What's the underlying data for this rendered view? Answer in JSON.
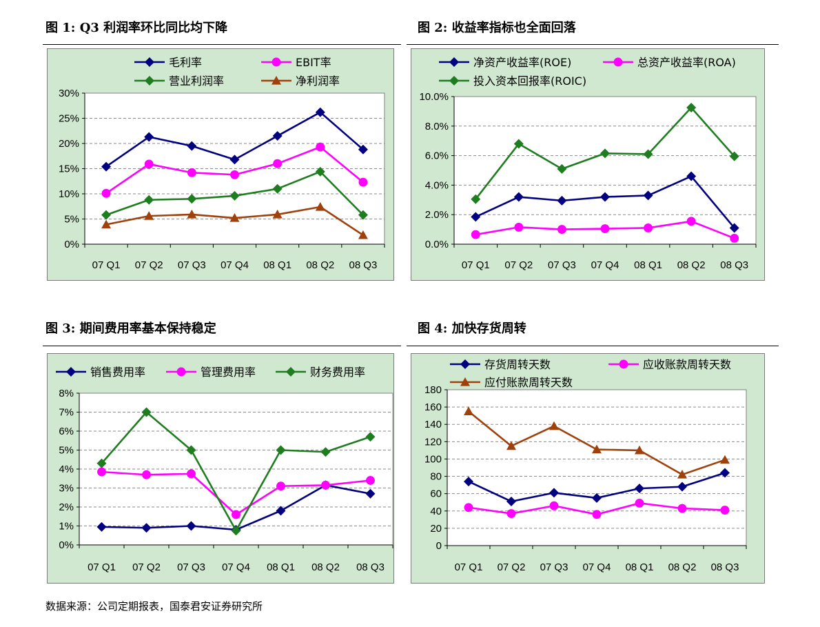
{
  "figure_titles": [
    "图 1:  Q3 利润率环比同比均下降",
    "图 2:  收益率指标也全面回落",
    "图 3:  期间费用率基本保持稳定",
    "图 4:  加快存货周转"
  ],
  "source": "数据来源：公司定期报表，国泰君安证券研究所",
  "chart_data": [
    {
      "type": "line",
      "title": "图 1:  Q3 利润率环比同比均下降",
      "categories": [
        "07 Q1",
        "07 Q2",
        "07 Q3",
        "07 Q4",
        "08 Q1",
        "08 Q2",
        "08 Q3"
      ],
      "ylim": [
        0,
        30
      ],
      "yticks": [
        "0%",
        "5%",
        "10%",
        "15%",
        "20%",
        "25%",
        "30%"
      ],
      "grid": true,
      "legend": "top",
      "series": [
        {
          "name": "毛利率",
          "color": "#000080",
          "marker": "diamond",
          "values": [
            15.4,
            21.3,
            19.5,
            16.8,
            21.5,
            26.2,
            18.8
          ]
        },
        {
          "name": "EBIT率",
          "color": "#ff00ff",
          "marker": "circle",
          "values": [
            10.1,
            15.9,
            14.2,
            13.8,
            16.0,
            19.3,
            12.3
          ]
        },
        {
          "name": "营业利润率",
          "color": "#1e7d1e",
          "marker": "diamond",
          "values": [
            5.8,
            8.8,
            9.0,
            9.6,
            11.0,
            14.4,
            5.8
          ]
        },
        {
          "name": "净利润率",
          "color": "#a0400a",
          "marker": "triangle",
          "values": [
            3.9,
            5.6,
            5.9,
            5.2,
            5.9,
            7.4,
            1.8
          ]
        }
      ]
    },
    {
      "type": "line",
      "title": "图 2:  收益率指标也全面回落",
      "categories": [
        "07 Q1",
        "07 Q2",
        "07 Q3",
        "07 Q4",
        "08 Q1",
        "08 Q2",
        "08 Q3"
      ],
      "ylim": [
        0,
        10
      ],
      "yticks": [
        "0.0%",
        "2.0%",
        "4.0%",
        "6.0%",
        "8.0%",
        "10.0%"
      ],
      "grid": true,
      "legend": "top",
      "series": [
        {
          "name": "净资产收益率(ROE)",
          "color": "#000080",
          "marker": "diamond",
          "values": [
            1.85,
            3.2,
            2.95,
            3.2,
            3.3,
            4.6,
            1.1
          ]
        },
        {
          "name": "总资产收益率(ROA)",
          "color": "#ff00ff",
          "marker": "circle",
          "values": [
            0.65,
            1.15,
            1.0,
            1.05,
            1.1,
            1.55,
            0.4
          ]
        },
        {
          "name": "投入资本回报率(ROIC)",
          "color": "#1e7d1e",
          "marker": "diamond",
          "values": [
            3.05,
            6.8,
            5.1,
            6.15,
            6.1,
            9.25,
            5.95
          ]
        }
      ]
    },
    {
      "type": "line",
      "title": "图 3:  期间费用率基本保持稳定",
      "categories": [
        "07 Q1",
        "07 Q2",
        "07 Q3",
        "07 Q4",
        "08 Q1",
        "08 Q2",
        "08 Q3"
      ],
      "ylim": [
        0,
        8
      ],
      "yticks": [
        "0%",
        "1%",
        "2%",
        "3%",
        "4%",
        "5%",
        "6%",
        "7%",
        "8%"
      ],
      "grid": true,
      "legend": "top",
      "series": [
        {
          "name": "销售费用率",
          "color": "#000080",
          "marker": "diamond",
          "values": [
            0.95,
            0.9,
            1.0,
            0.8,
            1.8,
            3.15,
            2.7
          ]
        },
        {
          "name": "管理费用率",
          "color": "#ff00ff",
          "marker": "circle",
          "values": [
            3.85,
            3.7,
            3.75,
            1.6,
            3.1,
            3.15,
            3.4
          ]
        },
        {
          "name": "财务费用率",
          "color": "#1e7d1e",
          "marker": "diamond",
          "values": [
            4.3,
            7.0,
            5.0,
            0.75,
            5.0,
            4.9,
            5.7
          ]
        }
      ]
    },
    {
      "type": "line",
      "title": "图 4:  加快存货周转",
      "categories": [
        "07 Q1",
        "07 Q2",
        "07 Q3",
        "07 Q4",
        "08 Q1",
        "08 Q2",
        "08 Q3"
      ],
      "ylim": [
        0,
        180
      ],
      "yticks": [
        "0",
        "20",
        "40",
        "60",
        "80",
        "100",
        "120",
        "140",
        "160",
        "180"
      ],
      "grid": true,
      "legend": "top",
      "series": [
        {
          "name": "存货周转天数",
          "color": "#000080",
          "marker": "diamond",
          "values": [
            74,
            51,
            61,
            55,
            66,
            68,
            84
          ]
        },
        {
          "name": "应收账款周转天数",
          "color": "#ff00ff",
          "marker": "circle",
          "values": [
            44,
            37,
            46,
            36,
            49,
            43,
            41
          ]
        },
        {
          "name": "应付账款周转天数",
          "color": "#a0400a",
          "marker": "triangle",
          "values": [
            155,
            115,
            138,
            111,
            110,
            82,
            99
          ]
        }
      ]
    }
  ]
}
